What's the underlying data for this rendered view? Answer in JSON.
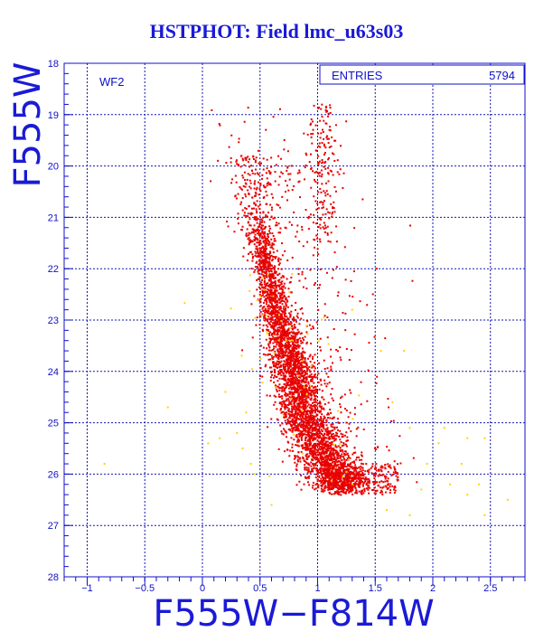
{
  "header": {
    "title": "HSTPHOT: Field lmc_u63s03"
  },
  "panel": {
    "label": "WF2"
  },
  "stats_box": {
    "entries_label": "ENTRIES",
    "entries_value": "5794"
  },
  "colors": {
    "axis": "#1010c8",
    "grid": "#1515b4",
    "points_main": "#e80000",
    "points_outlier": "#ffd400",
    "title": "#1a1ad6"
  },
  "chart_data": {
    "type": "scatter",
    "title": "HSTPHOT: Field lmc_u63s03",
    "xlabel": "F555W−F814W",
    "ylabel": "F555W",
    "xlim": [
      -1.2,
      2.8
    ],
    "ylim": [
      28,
      18
    ],
    "y_inverted": true,
    "x_ticks": [
      -1,
      -0.5,
      0,
      0.5,
      1,
      1.5,
      2,
      2.5
    ],
    "x_tick_labels": [
      "−1",
      "−0.5",
      "0",
      "0.5",
      "1",
      "1.5",
      "2",
      "2.5"
    ],
    "y_ticks": [
      18,
      19,
      20,
      21,
      22,
      23,
      24,
      25,
      26,
      27,
      28
    ],
    "y_tick_labels": [
      "18",
      "19",
      "20",
      "21",
      "22",
      "23",
      "24",
      "25",
      "26",
      "27",
      "28"
    ],
    "grid": true,
    "entries": 5794,
    "series": [
      {
        "description_color": "red",
        "role": "main",
        "ridge": [
          {
            "x": 0.5,
            "y": 21.2
          },
          {
            "x": 0.54,
            "y": 21.8
          },
          {
            "x": 0.6,
            "y": 22.4
          },
          {
            "x": 0.66,
            "y": 23.0
          },
          {
            "x": 0.74,
            "y": 23.6
          },
          {
            "x": 0.8,
            "y": 24.2
          },
          {
            "x": 0.88,
            "y": 24.8
          },
          {
            "x": 0.98,
            "y": 25.3
          },
          {
            "x": 1.08,
            "y": 25.8
          },
          {
            "x": 1.18,
            "y": 26.1
          }
        ],
        "giant_branch": {
          "x": 0.42,
          "y_range": [
            19.8,
            21.8
          ]
        },
        "red_clump_column": {
          "x": 1.05,
          "y_range": [
            18.8,
            21.5
          ]
        },
        "faint_tail": {
          "x_range": [
            1.1,
            1.7
          ],
          "y_range": [
            25.8,
            26.4
          ]
        }
      },
      {
        "description_color": "yellow",
        "role": "outliers",
        "points": [
          {
            "x": -0.85,
            "y": 25.8
          },
          {
            "x": -0.3,
            "y": 24.7
          },
          {
            "x": 0.05,
            "y": 25.4
          },
          {
            "x": 0.15,
            "y": 25.3
          },
          {
            "x": 0.2,
            "y": 24.4
          },
          {
            "x": 0.35,
            "y": 25.5
          },
          {
            "x": 0.38,
            "y": 24.8
          },
          {
            "x": 0.42,
            "y": 25.8
          },
          {
            "x": 0.3,
            "y": 25.2
          },
          {
            "x": 0.45,
            "y": 26.0
          },
          {
            "x": 1.3,
            "y": 22.8
          },
          {
            "x": 1.55,
            "y": 23.6
          },
          {
            "x": 1.75,
            "y": 23.6
          },
          {
            "x": 1.65,
            "y": 24.6
          },
          {
            "x": 1.8,
            "y": 25.1
          },
          {
            "x": 2.05,
            "y": 25.4
          },
          {
            "x": 2.1,
            "y": 25.1
          },
          {
            "x": 2.3,
            "y": 25.3
          },
          {
            "x": 2.45,
            "y": 25.3
          },
          {
            "x": 1.95,
            "y": 25.8
          },
          {
            "x": 2.15,
            "y": 26.2
          },
          {
            "x": 2.3,
            "y": 26.4
          },
          {
            "x": 2.4,
            "y": 26.2
          },
          {
            "x": 2.45,
            "y": 26.8
          },
          {
            "x": 2.65,
            "y": 26.5
          },
          {
            "x": 1.6,
            "y": 26.7
          },
          {
            "x": 1.8,
            "y": 26.8
          },
          {
            "x": 2.25,
            "y": 25.8
          },
          {
            "x": 1.9,
            "y": 26.3
          },
          {
            "x": 0.6,
            "y": 26.6
          }
        ]
      }
    ]
  }
}
